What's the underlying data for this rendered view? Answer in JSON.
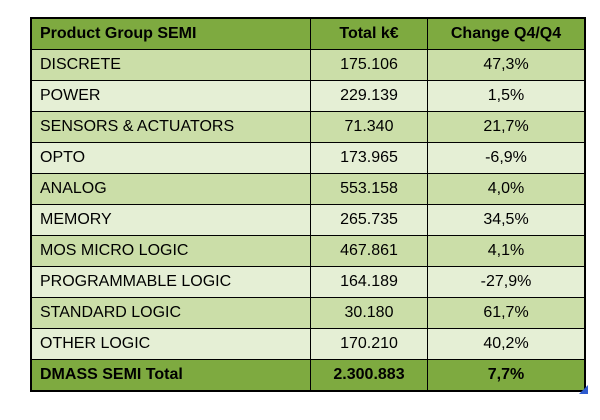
{
  "table": {
    "headers": {
      "group": "Product Group SEMI",
      "total": "Total k€",
      "change": "Change Q4/Q4"
    },
    "rows": [
      {
        "group": "DISCRETE",
        "total": "175.106",
        "change": "47,3%"
      },
      {
        "group": "POWER",
        "total": "229.139",
        "change": "1,5%"
      },
      {
        "group": "SENSORS & ACTUATORS",
        "total": "71.340",
        "change": "21,7%"
      },
      {
        "group": "OPTO",
        "total": "173.965",
        "change": "-6,9%"
      },
      {
        "group": "ANALOG",
        "total": "553.158",
        "change": "4,0%"
      },
      {
        "group": "MEMORY",
        "total": "265.735",
        "change": "34,5%"
      },
      {
        "group": "MOS MICRO LOGIC",
        "total": "467.861",
        "change": "4,1%"
      },
      {
        "group": "PROGRAMMABLE LOGIC",
        "total": "164.189",
        "change": "-27,9%"
      },
      {
        "group": "STANDARD LOGIC",
        "total": "30.180",
        "change": "61,7%"
      },
      {
        "group": "OTHER LOGIC",
        "total": "170.210",
        "change": "40,2%"
      },
      {
        "group": "DMASS SEMI Total",
        "total": "2.300.883",
        "change": "7,7%"
      }
    ]
  },
  "chart_data": {
    "type": "table",
    "columns": [
      "Product Group SEMI",
      "Total k€",
      "Change Q4/Q4"
    ],
    "rows": [
      {
        "product_group": "DISCRETE",
        "total_keur": 175106,
        "change_q4_q4_pct": 47.3
      },
      {
        "product_group": "POWER",
        "total_keur": 229139,
        "change_q4_q4_pct": 1.5
      },
      {
        "product_group": "SENSORS & ACTUATORS",
        "total_keur": 71340,
        "change_q4_q4_pct": 21.7
      },
      {
        "product_group": "OPTO",
        "total_keur": 173965,
        "change_q4_q4_pct": -6.9
      },
      {
        "product_group": "ANALOG",
        "total_keur": 553158,
        "change_q4_q4_pct": 4.0
      },
      {
        "product_group": "MEMORY",
        "total_keur": 265735,
        "change_q4_q4_pct": 34.5
      },
      {
        "product_group": "MOS MICRO LOGIC",
        "total_keur": 467861,
        "change_q4_q4_pct": 4.1
      },
      {
        "product_group": "PROGRAMMABLE LOGIC",
        "total_keur": 164189,
        "change_q4_q4_pct": -27.9
      },
      {
        "product_group": "STANDARD LOGIC",
        "total_keur": 30180,
        "change_q4_q4_pct": 61.7
      },
      {
        "product_group": "OTHER LOGIC",
        "total_keur": 170210,
        "change_q4_q4_pct": 40.2
      },
      {
        "product_group": "DMASS SEMI Total",
        "total_keur": 2300883,
        "change_q4_q4_pct": 7.7
      }
    ]
  },
  "colors": {
    "header_bg": "#7EAA40",
    "row_a": "#CBDEA8",
    "row_b": "#E5EFD5",
    "border": "#000000",
    "handle_blue": "#2E5BCF"
  }
}
